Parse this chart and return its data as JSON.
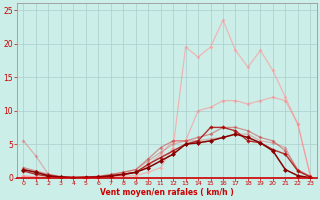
{
  "background_color": "#cceee8",
  "grid_color": "#aacccc",
  "xlabel": "Vent moyen/en rafales ( km/h )",
  "xlabel_color": "#cc0000",
  "tick_color": "#cc0000",
  "xlim_min": -0.5,
  "xlim_max": 23.5,
  "ylim_min": 0,
  "ylim_max": 26,
  "yticks": [
    0,
    5,
    10,
    15,
    20,
    25
  ],
  "xticks": [
    0,
    1,
    2,
    3,
    4,
    5,
    6,
    7,
    8,
    9,
    10,
    11,
    12,
    13,
    14,
    15,
    16,
    17,
    18,
    19,
    20,
    21,
    22,
    23
  ],
  "series": [
    {
      "x": [
        0,
        1,
        2,
        3,
        4,
        5,
        6,
        7,
        8,
        9,
        10,
        11,
        12,
        13,
        14,
        15,
        16,
        17,
        18,
        19,
        20,
        21,
        22,
        23
      ],
      "y": [
        0.3,
        0.1,
        0.0,
        0.0,
        0.0,
        0.0,
        0.1,
        0.1,
        0.2,
        0.3,
        0.8,
        1.5,
        4.5,
        19.5,
        18.0,
        19.5,
        23.5,
        19.0,
        16.5,
        19.0,
        16.0,
        12.0,
        8.0,
        0.3
      ],
      "color": "#ff9999",
      "alpha": 0.65,
      "linewidth": 0.9,
      "marker": "D",
      "markersize": 2.0
    },
    {
      "x": [
        0,
        1,
        2,
        3,
        4,
        5,
        6,
        7,
        8,
        9,
        10,
        11,
        12,
        13,
        14,
        15,
        16,
        17,
        18,
        19,
        20,
        21,
        22,
        23
      ],
      "y": [
        0.2,
        0.1,
        0.0,
        0.0,
        0.0,
        0.0,
        0.1,
        0.2,
        0.4,
        0.7,
        1.8,
        3.5,
        5.5,
        5.5,
        10.0,
        10.5,
        11.5,
        11.5,
        11.0,
        11.5,
        12.0,
        11.5,
        8.0,
        0.3
      ],
      "color": "#ff8888",
      "alpha": 0.55,
      "linewidth": 0.9,
      "marker": "D",
      "markersize": 2.0
    },
    {
      "x": [
        0,
        1,
        2,
        3,
        4,
        5,
        6,
        7,
        8,
        9,
        10,
        11,
        12,
        13,
        14,
        15,
        16,
        17,
        18,
        19,
        20,
        21,
        22,
        23
      ],
      "y": [
        5.5,
        3.2,
        0.5,
        0.2,
        0.1,
        0.1,
        0.2,
        0.4,
        0.8,
        1.2,
        2.5,
        3.8,
        5.0,
        5.5,
        5.5,
        5.8,
        6.0,
        6.5,
        6.5,
        5.5,
        5.2,
        4.5,
        1.0,
        0.2
      ],
      "color": "#dd6666",
      "alpha": 0.45,
      "linewidth": 0.9,
      "marker": "D",
      "markersize": 2.0
    },
    {
      "x": [
        0,
        1,
        2,
        3,
        4,
        5,
        6,
        7,
        8,
        9,
        10,
        11,
        12,
        13,
        14,
        15,
        16,
        17,
        18,
        19,
        20,
        21,
        22,
        23
      ],
      "y": [
        1.5,
        1.0,
        0.5,
        0.1,
        0.1,
        0.1,
        0.2,
        0.5,
        0.8,
        1.2,
        2.8,
        4.5,
        5.5,
        5.5,
        6.0,
        6.5,
        7.5,
        7.5,
        7.0,
        6.0,
        5.5,
        4.0,
        1.2,
        0.2
      ],
      "color": "#cc3333",
      "alpha": 0.5,
      "linewidth": 0.9,
      "marker": "D",
      "markersize": 2.0
    },
    {
      "x": [
        0,
        1,
        2,
        3,
        4,
        5,
        6,
        7,
        8,
        9,
        10,
        11,
        12,
        13,
        14,
        15,
        16,
        17,
        18,
        19,
        20,
        21,
        22,
        23
      ],
      "y": [
        1.0,
        0.5,
        0.2,
        0.1,
        0.0,
        0.1,
        0.1,
        0.2,
        0.5,
        0.8,
        2.0,
        3.0,
        4.0,
        5.0,
        5.5,
        7.5,
        7.5,
        7.0,
        5.5,
        5.2,
        4.2,
        3.5,
        1.0,
        0.1
      ],
      "color": "#aa0000",
      "alpha": 0.8,
      "linewidth": 1.0,
      "marker": "D",
      "markersize": 2.2
    },
    {
      "x": [
        0,
        1,
        2,
        3,
        4,
        5,
        6,
        7,
        8,
        9,
        10,
        11,
        12,
        13,
        14,
        15,
        16,
        17,
        18,
        19,
        20,
        21,
        22,
        23
      ],
      "y": [
        1.2,
        0.8,
        0.3,
        0.1,
        0.0,
        0.0,
        0.1,
        0.3,
        0.5,
        0.8,
        1.5,
        2.5,
        3.5,
        5.0,
        5.2,
        5.5,
        6.0,
        6.5,
        6.0,
        5.2,
        4.0,
        1.2,
        0.3,
        0.0
      ],
      "color": "#880000",
      "alpha": 1.0,
      "linewidth": 1.1,
      "marker": "D",
      "markersize": 2.5
    }
  ]
}
